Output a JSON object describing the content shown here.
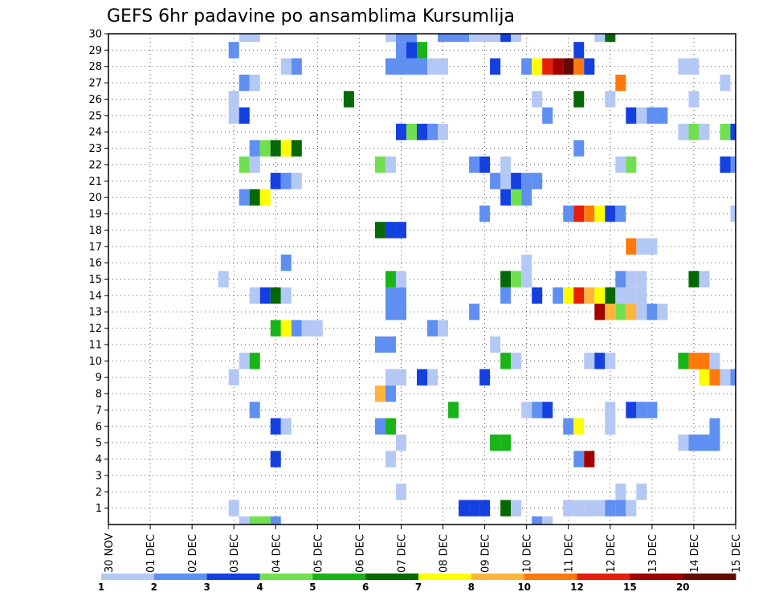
{
  "chart_data": {
    "type": "heatmap",
    "title": "GEFS 6hr padavine po ansamblima Kursumlija",
    "xlabel": "",
    "ylabel": "",
    "x_ticks": [
      "30 NOV",
      "01 DEC",
      "02 DEC",
      "03 DEC",
      "04 DEC",
      "05 DEC",
      "06 DEC",
      "07 DEC",
      "08 DEC",
      "09 DEC",
      "10 DEC",
      "11 DEC",
      "12 DEC",
      "13 DEC",
      "14 DEC",
      "15 DEC"
    ],
    "y_ticks": [
      1,
      2,
      3,
      4,
      5,
      6,
      7,
      8,
      9,
      10,
      11,
      12,
      13,
      14,
      15,
      16,
      17,
      18,
      19,
      20,
      21,
      22,
      23,
      24,
      25,
      26,
      27,
      28,
      29,
      30
    ],
    "xlim": [
      0,
      60
    ],
    "ylim": [
      0,
      30
    ],
    "x_unit": "6-hour steps from 30 NOV 00Z",
    "grid": "dotted",
    "colorbar": {
      "position": "bottom",
      "colors": [
        "#b4c8f5",
        "#5f8ff0",
        "#1440e0",
        "#70e050",
        "#18b418",
        "#066806",
        "#ffff00",
        "#ffb43c",
        "#ff780a",
        "#e61e0a",
        "#a00000",
        "#640a00"
      ],
      "labels": [
        "1",
        "2",
        "3",
        "4",
        "5",
        "6",
        "7",
        "8",
        "10",
        "12",
        "15",
        "20"
      ]
    },
    "cells": [
      {
        "m": 0,
        "s": [
          [
            13,
            1
          ],
          [
            14,
            4
          ],
          [
            15,
            4
          ],
          [
            16,
            2
          ],
          [
            41,
            2
          ],
          [
            42,
            1
          ]
        ]
      },
      {
        "m": 1,
        "s": [
          [
            12,
            1
          ],
          [
            34,
            3
          ],
          [
            35,
            3
          ],
          [
            36,
            3
          ],
          [
            38,
            6
          ],
          [
            39,
            1
          ],
          [
            44,
            1
          ],
          [
            45,
            1
          ],
          [
            46,
            1
          ],
          [
            47,
            1
          ],
          [
            48,
            2
          ],
          [
            49,
            2
          ],
          [
            50,
            1
          ]
        ]
      },
      {
        "m": 2,
        "s": [
          [
            28,
            1
          ],
          [
            49,
            1
          ],
          [
            51,
            1
          ]
        ]
      },
      {
        "m": 4,
        "s": [
          [
            16,
            3
          ],
          [
            27,
            1
          ],
          [
            45,
            2
          ],
          [
            46,
            11
          ]
        ]
      },
      {
        "m": 5,
        "s": [
          [
            28,
            1
          ],
          [
            37,
            5
          ],
          [
            38,
            5
          ],
          [
            55,
            1
          ],
          [
            56,
            2
          ],
          [
            57,
            2
          ],
          [
            58,
            2
          ]
        ]
      },
      {
        "m": 6,
        "s": [
          [
            16,
            3
          ],
          [
            17,
            1
          ],
          [
            26,
            2
          ],
          [
            27,
            5
          ],
          [
            44,
            2
          ],
          [
            45,
            7
          ],
          [
            48,
            1
          ],
          [
            58,
            2
          ]
        ]
      },
      {
        "m": 7,
        "s": [
          [
            14,
            2
          ],
          [
            33,
            5
          ],
          [
            40,
            1
          ],
          [
            41,
            2
          ],
          [
            42,
            3
          ],
          [
            48,
            1
          ],
          [
            50,
            3
          ],
          [
            51,
            2
          ],
          [
            52,
            2
          ]
        ]
      },
      {
        "m": 8,
        "s": [
          [
            26,
            8
          ],
          [
            27,
            2
          ]
        ]
      },
      {
        "m": 9,
        "s": [
          [
            12,
            1
          ],
          [
            27,
            1
          ],
          [
            28,
            1
          ],
          [
            30,
            3
          ],
          [
            31,
            1
          ],
          [
            36,
            3
          ],
          [
            57,
            7
          ],
          [
            58,
            9
          ],
          [
            59,
            1
          ],
          [
            60,
            2
          ]
        ]
      },
      {
        "m": 10,
        "s": [
          [
            13,
            1
          ],
          [
            14,
            5
          ],
          [
            38,
            5
          ],
          [
            39,
            1
          ],
          [
            46,
            1
          ],
          [
            47,
            3
          ],
          [
            48,
            1
          ],
          [
            55,
            5
          ],
          [
            56,
            9
          ],
          [
            57,
            9
          ],
          [
            58,
            1
          ]
        ]
      },
      {
        "m": 11,
        "s": [
          [
            26,
            2
          ],
          [
            27,
            2
          ],
          [
            37,
            1
          ]
        ]
      },
      {
        "m": 12,
        "s": [
          [
            16,
            5
          ],
          [
            17,
            7
          ],
          [
            18,
            2
          ],
          [
            19,
            1
          ],
          [
            20,
            1
          ],
          [
            31,
            2
          ],
          [
            32,
            1
          ]
        ]
      },
      {
        "m": 13,
        "s": [
          [
            27,
            2
          ],
          [
            28,
            2
          ],
          [
            35,
            2
          ],
          [
            47,
            11
          ],
          [
            48,
            8
          ],
          [
            49,
            4
          ],
          [
            50,
            8
          ],
          [
            51,
            1
          ],
          [
            52,
            2
          ],
          [
            53,
            1
          ]
        ]
      },
      {
        "m": 14,
        "s": [
          [
            14,
            1
          ],
          [
            15,
            3
          ],
          [
            16,
            6
          ],
          [
            17,
            1
          ],
          [
            27,
            2
          ],
          [
            28,
            2
          ],
          [
            38,
            2
          ],
          [
            41,
            3
          ],
          [
            43,
            2
          ],
          [
            44,
            7
          ],
          [
            45,
            10
          ],
          [
            46,
            8
          ],
          [
            47,
            7
          ],
          [
            48,
            6
          ],
          [
            49,
            1
          ],
          [
            50,
            1
          ],
          [
            51,
            1
          ]
        ]
      },
      {
        "m": 15,
        "s": [
          [
            11,
            1
          ],
          [
            27,
            5
          ],
          [
            28,
            1
          ],
          [
            38,
            6
          ],
          [
            39,
            4
          ],
          [
            40,
            1
          ],
          [
            49,
            2
          ],
          [
            50,
            1
          ],
          [
            51,
            1
          ],
          [
            56,
            6
          ],
          [
            57,
            1
          ]
        ]
      },
      {
        "m": 16,
        "s": [
          [
            17,
            2
          ],
          [
            40,
            1
          ]
        ]
      },
      {
        "m": 17,
        "s": [
          [
            50,
            9
          ],
          [
            51,
            1
          ],
          [
            52,
            1
          ]
        ]
      },
      {
        "m": 18,
        "s": [
          [
            26,
            6
          ],
          [
            27,
            3
          ],
          [
            28,
            3
          ]
        ]
      },
      {
        "m": 19,
        "s": [
          [
            36,
            2
          ],
          [
            44,
            2
          ],
          [
            45,
            10
          ],
          [
            46,
            9
          ],
          [
            47,
            7
          ],
          [
            48,
            3
          ],
          [
            49,
            2
          ],
          [
            60,
            1
          ]
        ]
      },
      {
        "m": 20,
        "s": [
          [
            13,
            2
          ],
          [
            14,
            6
          ],
          [
            15,
            7
          ],
          [
            38,
            3
          ],
          [
            39,
            4
          ],
          [
            40,
            2
          ]
        ]
      },
      {
        "m": 21,
        "s": [
          [
            16,
            3
          ],
          [
            17,
            2
          ],
          [
            18,
            1
          ],
          [
            37,
            2
          ],
          [
            38,
            1
          ],
          [
            39,
            3
          ],
          [
            40,
            2
          ],
          [
            41,
            2
          ]
        ]
      },
      {
        "m": 22,
        "s": [
          [
            13,
            4
          ],
          [
            14,
            1
          ],
          [
            26,
            4
          ],
          [
            27,
            1
          ],
          [
            35,
            2
          ],
          [
            36,
            3
          ],
          [
            38,
            1
          ],
          [
            49,
            1
          ],
          [
            50,
            4
          ],
          [
            59,
            3
          ],
          [
            60,
            2
          ]
        ]
      },
      {
        "m": 23,
        "s": [
          [
            14,
            2
          ],
          [
            15,
            4
          ],
          [
            16,
            6
          ],
          [
            17,
            7
          ],
          [
            18,
            6
          ],
          [
            45,
            2
          ]
        ]
      },
      {
        "m": 24,
        "s": [
          [
            28,
            3
          ],
          [
            29,
            4
          ],
          [
            30,
            3
          ],
          [
            31,
            2
          ],
          [
            32,
            1
          ],
          [
            55,
            1
          ],
          [
            56,
            4
          ],
          [
            57,
            1
          ],
          [
            59,
            4
          ],
          [
            60,
            3
          ]
        ]
      },
      {
        "m": 25,
        "s": [
          [
            12,
            1
          ],
          [
            13,
            3
          ],
          [
            42,
            2
          ],
          [
            50,
            3
          ],
          [
            51,
            1
          ],
          [
            52,
            2
          ],
          [
            53,
            2
          ]
        ]
      },
      {
        "m": 26,
        "s": [
          [
            12,
            1
          ],
          [
            23,
            6
          ],
          [
            41,
            1
          ],
          [
            45,
            6
          ],
          [
            48,
            1
          ],
          [
            56,
            1
          ]
        ]
      },
      {
        "m": 27,
        "s": [
          [
            13,
            2
          ],
          [
            14,
            1
          ],
          [
            49,
            9
          ],
          [
            59,
            1
          ]
        ]
      },
      {
        "m": 28,
        "s": [
          [
            17,
            1
          ],
          [
            18,
            2
          ],
          [
            27,
            2
          ],
          [
            28,
            2
          ],
          [
            29,
            2
          ],
          [
            30,
            2
          ],
          [
            31,
            1
          ],
          [
            32,
            1
          ],
          [
            37,
            3
          ],
          [
            40,
            2
          ],
          [
            41,
            7
          ],
          [
            42,
            10
          ],
          [
            43,
            11
          ],
          [
            44,
            12
          ],
          [
            45,
            9
          ],
          [
            46,
            3
          ],
          [
            55,
            1
          ],
          [
            56,
            1
          ]
        ]
      },
      {
        "m": 29,
        "s": [
          [
            12,
            2
          ],
          [
            28,
            2
          ],
          [
            29,
            3
          ],
          [
            30,
            5
          ],
          [
            45,
            3
          ]
        ]
      },
      {
        "m": 30,
        "s": [
          [
            13,
            1
          ],
          [
            14,
            1
          ],
          [
            27,
            1
          ],
          [
            28,
            2
          ],
          [
            29,
            2
          ],
          [
            32,
            2
          ],
          [
            33,
            2
          ],
          [
            34,
            2
          ],
          [
            35,
            1
          ],
          [
            36,
            1
          ],
          [
            37,
            1
          ],
          [
            38,
            3
          ],
          [
            39,
            1
          ],
          [
            47,
            1
          ],
          [
            48,
            6
          ]
        ]
      }
    ]
  }
}
